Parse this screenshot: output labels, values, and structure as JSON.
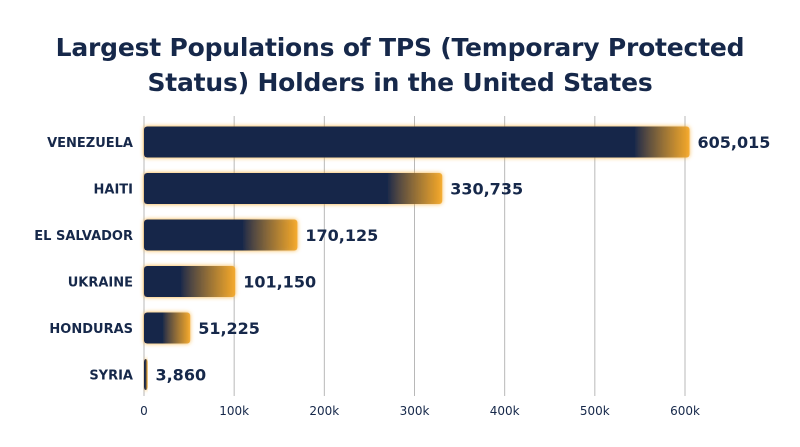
{
  "chart_data": {
    "type": "bar",
    "orientation": "horizontal",
    "title_lines": [
      "Largest Populations of TPS (Temporary Protected",
      "Status) Holders in the United States"
    ],
    "categories": [
      "VENEZUELA",
      "HAITI",
      "EL SALVADOR",
      "UKRAINE",
      "HONDURAS",
      "SYRIA"
    ],
    "values": [
      605015,
      330735,
      170125,
      101150,
      51225,
      3860
    ],
    "value_labels": [
      "605,015",
      "330,735",
      "170,125",
      "101,150",
      "51,225",
      "3,860"
    ],
    "xlim": [
      0,
      600000
    ],
    "x_ticks": [
      0,
      100000,
      200000,
      300000,
      400000,
      500000,
      600000
    ],
    "x_tick_labels": [
      "0",
      "100k",
      "200k",
      "300k",
      "400k",
      "500k",
      "600k"
    ],
    "grid": "vertical",
    "colors": {
      "bar": "#16284a",
      "glow": "#f5a623",
      "text": "#16284a",
      "grid": "#b8b8b8"
    }
  }
}
